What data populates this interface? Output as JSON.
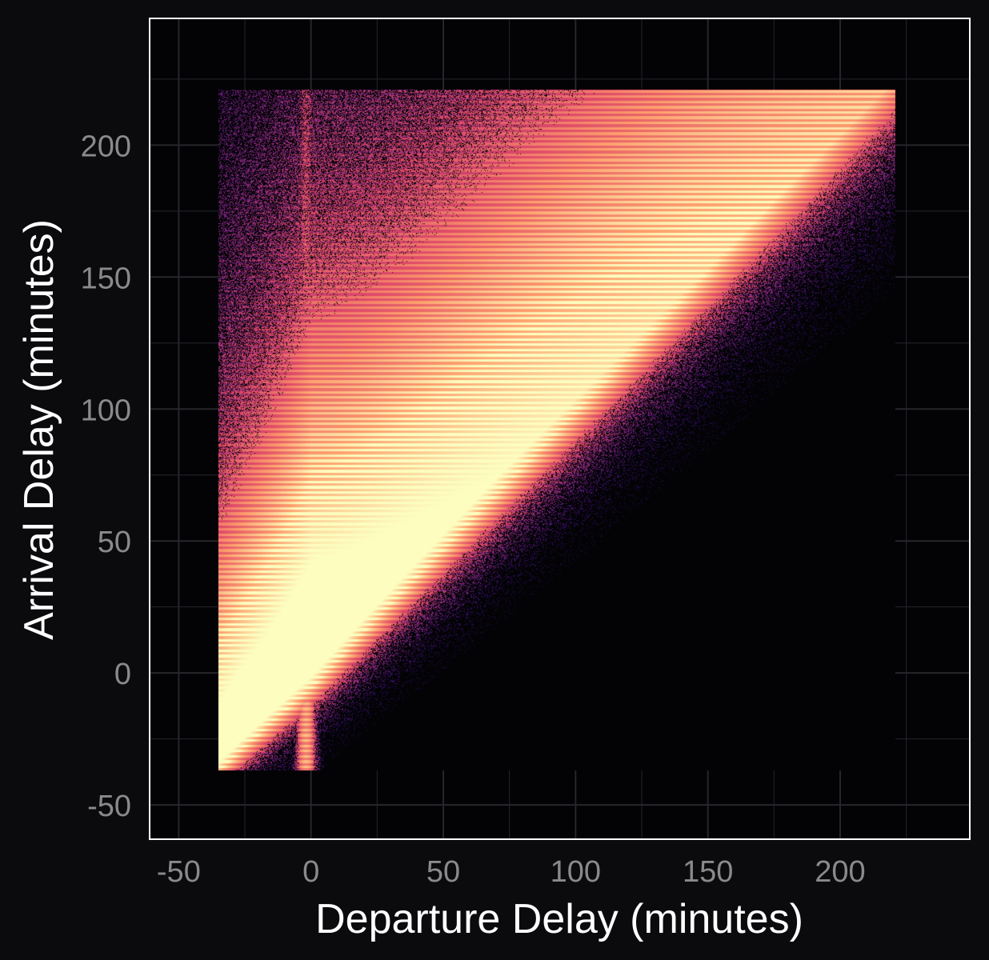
{
  "chart_data": {
    "type": "heatmap",
    "title": "",
    "xlabel": "Departure Delay (minutes)",
    "ylabel": "Arrival Delay (minutes)",
    "xlim": [
      -61,
      249
    ],
    "ylim": [
      -63,
      248
    ],
    "x_ticks": [
      -50,
      0,
      50,
      100,
      150,
      200
    ],
    "y_ticks": [
      -50,
      0,
      50,
      100,
      150,
      200
    ],
    "x_tick_labels": [
      "-50",
      "0",
      "50",
      "100",
      "150",
      "200"
    ],
    "y_tick_labels": [
      "-50",
      "0",
      "50",
      "100",
      "150",
      "200"
    ],
    "grid": true,
    "colormap": [
      "#000004",
      "#3b0f70",
      "#8c2981",
      "#de4968",
      "#fe9f6d",
      "#fcfdbf"
    ],
    "data_extent": {
      "x": [
        -35,
        221
      ],
      "y": [
        -37,
        221
      ]
    },
    "density_ridge": {
      "slope": 1.0,
      "intercept": 4
    },
    "colors": {
      "background": "#0b0b0e",
      "plot_background": "#030306",
      "frame": "#ffffff",
      "grid": "#26262b"
    }
  }
}
